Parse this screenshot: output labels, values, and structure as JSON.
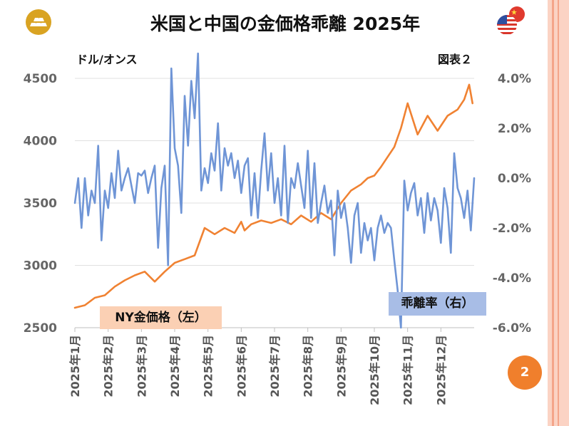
{
  "title": "米国と中国の金価格乖離 2025年",
  "unit_label": "ドル/オンス",
  "figure_label": "図表２",
  "page_number": "2",
  "logo": {
    "icon": "gold-bars-icon",
    "color": "#d9a322"
  },
  "flags_icon": "us-china-flags-icon",
  "colors": {
    "ny": "#f08232",
    "rate": "#6f95d6",
    "ny_legend_bg": "#fbd0b4",
    "rate_legend_bg": "#a8bde6",
    "badge": "#f07f2c",
    "frame": "#fbd3c4"
  },
  "chart_data": {
    "type": "line",
    "title": "米国と中国の金価格乖離 2025年",
    "x_tick_labels": [
      "2025年1月",
      "2025年2月",
      "2025年3月",
      "2025年4月",
      "2025年5月",
      "2025年6月",
      "2025年7月",
      "2025年8月",
      "2025年9月",
      "2025年10月",
      "2025年11月",
      "2025年12月"
    ],
    "x_range_months": [
      0,
      12
    ],
    "y_left": {
      "label": "ドル/オンス",
      "lim": [
        2500,
        4500
      ],
      "ticks": [
        "2500",
        "3000",
        "3500",
        "4000",
        "4500"
      ]
    },
    "y_right": {
      "label": "乖離率",
      "lim": [
        -6.0,
        4.0
      ],
      "ticks": [
        "-6.0%",
        "-4.0%",
        "-2.0%",
        "0.0%",
        "2.0%",
        "4.0%"
      ]
    },
    "series": [
      {
        "name": "NY金価格（左）",
        "axis": "left",
        "x": [
          0,
          0.3,
          0.6,
          0.9,
          1.2,
          1.5,
          1.8,
          2.1,
          2.4,
          2.7,
          3.0,
          3.3,
          3.6,
          3.9,
          4.2,
          4.5,
          4.8,
          5.0,
          5.1,
          5.3,
          5.6,
          5.9,
          6.2,
          6.5,
          6.8,
          7.1,
          7.4,
          7.7,
          8.0,
          8.3,
          8.6,
          8.8,
          9.0,
          9.2,
          9.4,
          9.6,
          9.8,
          10.0,
          10.3,
          10.6,
          10.9,
          11.2,
          11.5,
          11.7,
          11.85,
          11.95
        ],
        "values": [
          2660,
          2680,
          2740,
          2760,
          2830,
          2880,
          2920,
          2950,
          2870,
          2950,
          3020,
          3050,
          3080,
          3300,
          3250,
          3300,
          3260,
          3350,
          3280,
          3330,
          3360,
          3340,
          3370,
          3330,
          3400,
          3350,
          3420,
          3370,
          3500,
          3600,
          3650,
          3700,
          3720,
          3790,
          3870,
          3950,
          4100,
          4300,
          4050,
          4200,
          4080,
          4200,
          4250,
          4330,
          4450,
          4300
        ]
      },
      {
        "name": "乖離率（右）",
        "axis": "right",
        "x": [
          0,
          0.1,
          0.2,
          0.3,
          0.4,
          0.5,
          0.6,
          0.7,
          0.8,
          0.9,
          1.0,
          1.1,
          1.2,
          1.3,
          1.4,
          1.5,
          1.6,
          1.7,
          1.8,
          1.9,
          2.0,
          2.1,
          2.2,
          2.3,
          2.4,
          2.5,
          2.6,
          2.7,
          2.8,
          2.9,
          3.0,
          3.1,
          3.2,
          3.3,
          3.4,
          3.5,
          3.6,
          3.7,
          3.8,
          3.9,
          4.0,
          4.1,
          4.2,
          4.3,
          4.4,
          4.5,
          4.6,
          4.7,
          4.8,
          4.9,
          5.0,
          5.1,
          5.2,
          5.3,
          5.4,
          5.5,
          5.6,
          5.7,
          5.8,
          5.9,
          6.0,
          6.1,
          6.2,
          6.3,
          6.4,
          6.5,
          6.6,
          6.7,
          6.8,
          6.9,
          7.0,
          7.1,
          7.2,
          7.3,
          7.4,
          7.5,
          7.6,
          7.7,
          7.8,
          7.9,
          8.0,
          8.1,
          8.2,
          8.3,
          8.4,
          8.5,
          8.6,
          8.7,
          8.8,
          8.9,
          9.0,
          9.1,
          9.2,
          9.3,
          9.4,
          9.5,
          9.6,
          9.7,
          9.8,
          9.9,
          10.0,
          10.1,
          10.2,
          10.3,
          10.4,
          10.5,
          10.6,
          10.7,
          10.8,
          10.9,
          11.0,
          11.1,
          11.2,
          11.3,
          11.4,
          11.5,
          11.6,
          11.7,
          11.8,
          11.9,
          12.0
        ],
        "values": [
          -1.0,
          0.0,
          -2.0,
          0.0,
          -1.5,
          -0.5,
          -1.0,
          1.3,
          -2.5,
          -0.5,
          -1.2,
          0.2,
          -0.8,
          1.1,
          -0.5,
          0.0,
          0.4,
          -0.3,
          -1.0,
          0.2,
          0.1,
          0.3,
          -0.6,
          0.0,
          0.5,
          -2.8,
          -0.4,
          0.5,
          -3.5,
          4.4,
          1.2,
          0.5,
          -1.4,
          3.3,
          1.3,
          3.9,
          2.4,
          5.0,
          -0.5,
          0.4,
          -0.2,
          1.0,
          0.3,
          2.2,
          -0.5,
          1.2,
          0.5,
          1.0,
          0.0,
          0.7,
          -0.6,
          0.5,
          0.8,
          -1.5,
          0.2,
          -1.6,
          0.3,
          1.8,
          -0.5,
          1.0,
          -1.0,
          0.0,
          -1.5,
          1.3,
          -1.8,
          0.0,
          -0.4,
          0.6,
          -0.3,
          -1.2,
          1.1,
          -1.6,
          0.6,
          -1.8,
          -1.0,
          -0.3,
          -1.4,
          -0.9,
          -3.1,
          -0.5,
          -1.6,
          -1.0,
          -2.0,
          -3.4,
          -1.5,
          -1.0,
          -3.0,
          -1.8,
          -2.5,
          -2.0,
          -3.3,
          -2.0,
          -1.5,
          -2.2,
          -1.8,
          -2.0,
          -3.3,
          -4.5,
          -6.0,
          -0.1,
          -1.3,
          -0.6,
          -0.2,
          -1.5,
          -0.8,
          -2.2,
          -0.6,
          -1.7,
          -0.8,
          -1.3,
          -2.6,
          -0.4,
          -1.2,
          -3.0,
          1.0,
          -0.4,
          -0.8,
          -1.6,
          -0.5,
          -2.1,
          0.0
        ]
      }
    ]
  }
}
